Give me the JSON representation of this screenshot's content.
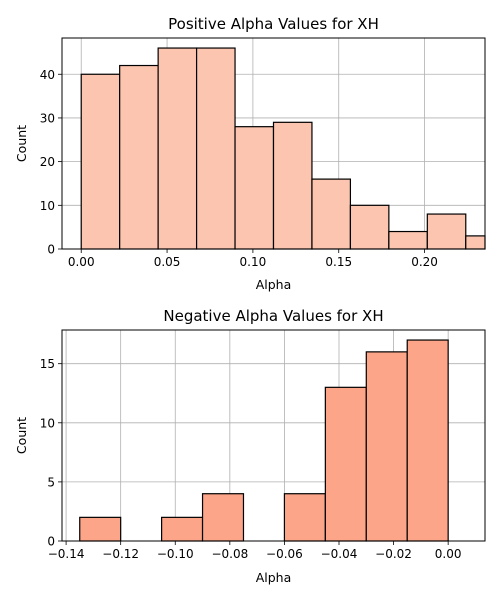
{
  "chart_data": [
    {
      "type": "bar",
      "title": "Positive Alpha Values for XH",
      "xlabel": "Alpha",
      "ylabel": "Count",
      "bar_color": "#fcc5b0",
      "edge_color": "#000000",
      "grid": true,
      "xlim": [
        -0.0112,
        0.2352
      ],
      "ylim": [
        0,
        48.3
      ],
      "xticks": [
        0.0,
        0.05,
        0.1,
        0.15,
        0.2
      ],
      "xtick_labels": [
        "0.00",
        "0.05",
        "0.10",
        "0.15",
        "0.20"
      ],
      "yticks": [
        0,
        10,
        20,
        30,
        40
      ],
      "ytick_labels": [
        "0",
        "10",
        "20",
        "30",
        "40"
      ],
      "bins": [
        {
          "x0": 0.0,
          "x1": 0.0224,
          "count": 40
        },
        {
          "x0": 0.0224,
          "x1": 0.0448,
          "count": 42
        },
        {
          "x0": 0.0448,
          "x1": 0.0672,
          "count": 46
        },
        {
          "x0": 0.0672,
          "x1": 0.0896,
          "count": 46
        },
        {
          "x0": 0.0896,
          "x1": 0.112,
          "count": 28
        },
        {
          "x0": 0.112,
          "x1": 0.1344,
          "count": 29
        },
        {
          "x0": 0.1344,
          "x1": 0.1568,
          "count": 16
        },
        {
          "x0": 0.1568,
          "x1": 0.1792,
          "count": 10
        },
        {
          "x0": 0.1792,
          "x1": 0.2016,
          "count": 4
        },
        {
          "x0": 0.2016,
          "x1": 0.224,
          "count": 8
        },
        {
          "x0": 0.224,
          "x1": 0.2464,
          "count": 3
        }
      ]
    },
    {
      "type": "bar",
      "title": "Negative Alpha Values for XH",
      "xlabel": "Alpha",
      "ylabel": "Count",
      "bar_color": "#fca588",
      "edge_color": "#000000",
      "grid": true,
      "xlim": [
        -0.1415,
        0.0135
      ],
      "ylim": [
        0,
        17.85
      ],
      "xticks": [
        -0.14,
        -0.12,
        -0.1,
        -0.08,
        -0.06,
        -0.04,
        -0.02,
        0.0
      ],
      "xtick_labels": [
        "−0.14",
        "−0.12",
        "−0.10",
        "−0.08",
        "−0.06",
        "−0.04",
        "−0.02",
        "0.00"
      ],
      "yticks": [
        0,
        5,
        10,
        15
      ],
      "ytick_labels": [
        "0",
        "5",
        "10",
        "15"
      ],
      "bins": [
        {
          "x0": -0.135,
          "x1": -0.12,
          "count": 2
        },
        {
          "x0": -0.12,
          "x1": -0.105,
          "count": 0
        },
        {
          "x0": -0.105,
          "x1": -0.09,
          "count": 2
        },
        {
          "x0": -0.09,
          "x1": -0.075,
          "count": 4
        },
        {
          "x0": -0.075,
          "x1": -0.06,
          "count": 0
        },
        {
          "x0": -0.06,
          "x1": -0.045,
          "count": 4
        },
        {
          "x0": -0.045,
          "x1": -0.03,
          "count": 13
        },
        {
          "x0": -0.03,
          "x1": -0.015,
          "count": 16
        },
        {
          "x0": -0.015,
          "x1": 0.0,
          "count": 17
        }
      ]
    }
  ]
}
